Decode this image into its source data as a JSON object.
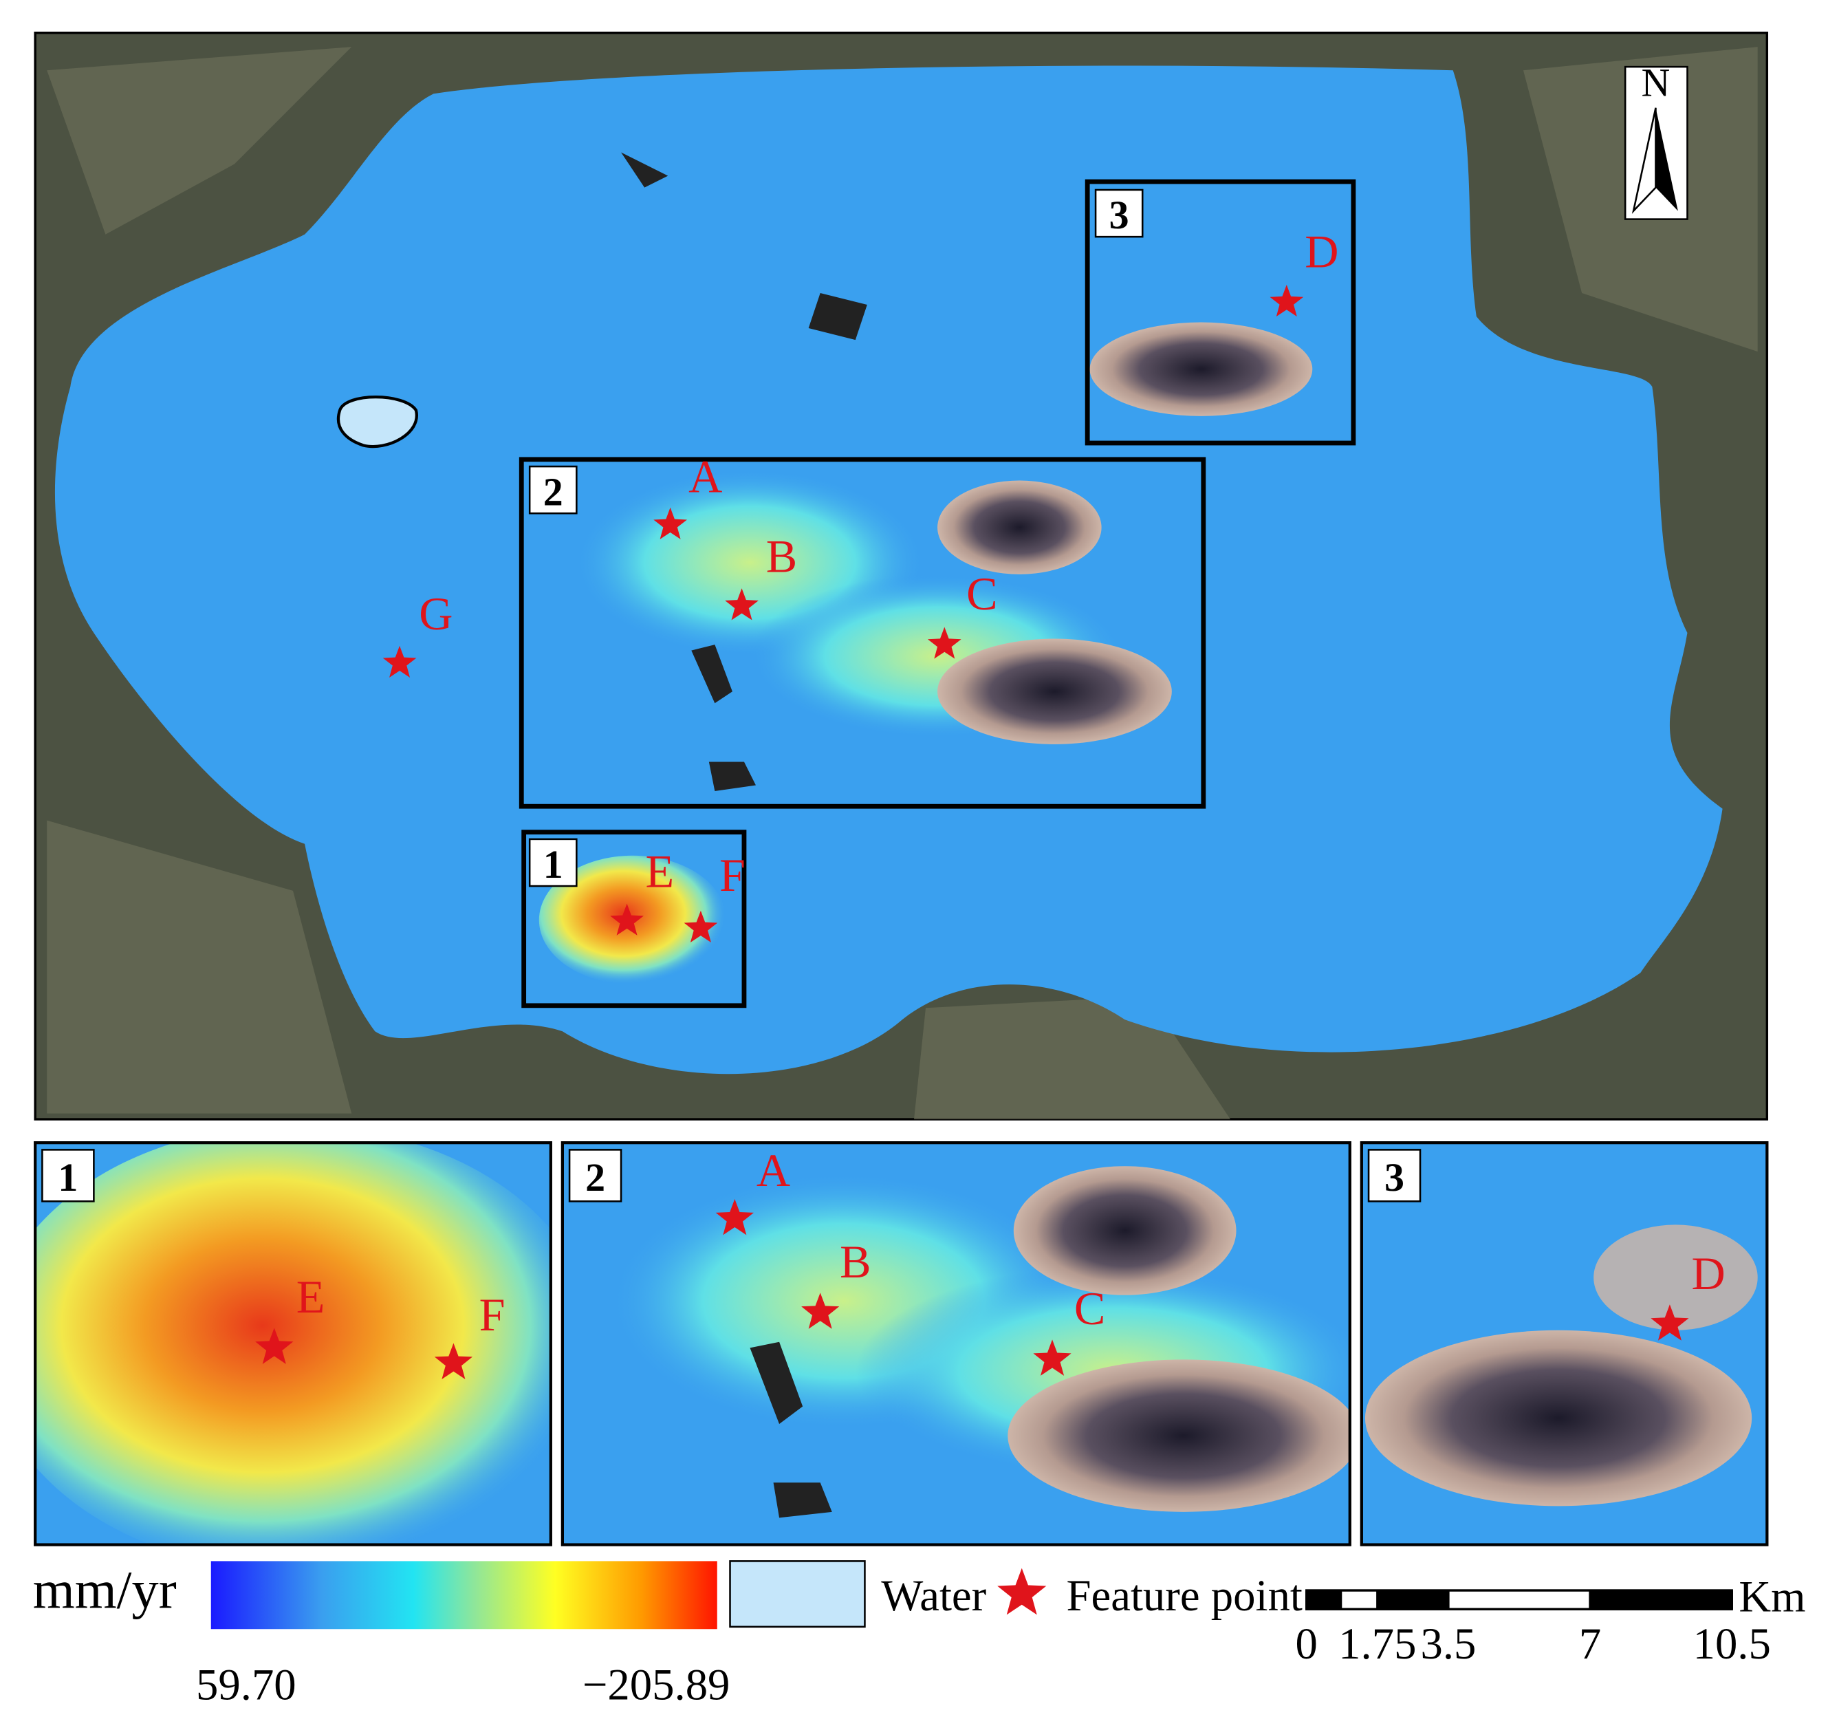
{
  "north_arrow": "N",
  "main_map": {
    "boxes": [
      "1",
      "2",
      "3"
    ],
    "points": [
      "A",
      "B",
      "C",
      "D",
      "E",
      "F",
      "G"
    ]
  },
  "insets": [
    {
      "label": "1",
      "points": [
        "E",
        "F"
      ]
    },
    {
      "label": "2",
      "points": [
        "A",
        "B",
        "C"
      ]
    },
    {
      "label": "3",
      "points": [
        "D"
      ]
    }
  ],
  "legend": {
    "unit": "mm/yr",
    "colorbar": {
      "min_label": "59.70",
      "max_label": "−205.89"
    },
    "water": "Water",
    "feature_point": "Feature point"
  },
  "scale_bar": {
    "ticks": [
      0,
      1.75,
      3.5,
      7,
      10.5
    ],
    "unit": "Km"
  }
}
